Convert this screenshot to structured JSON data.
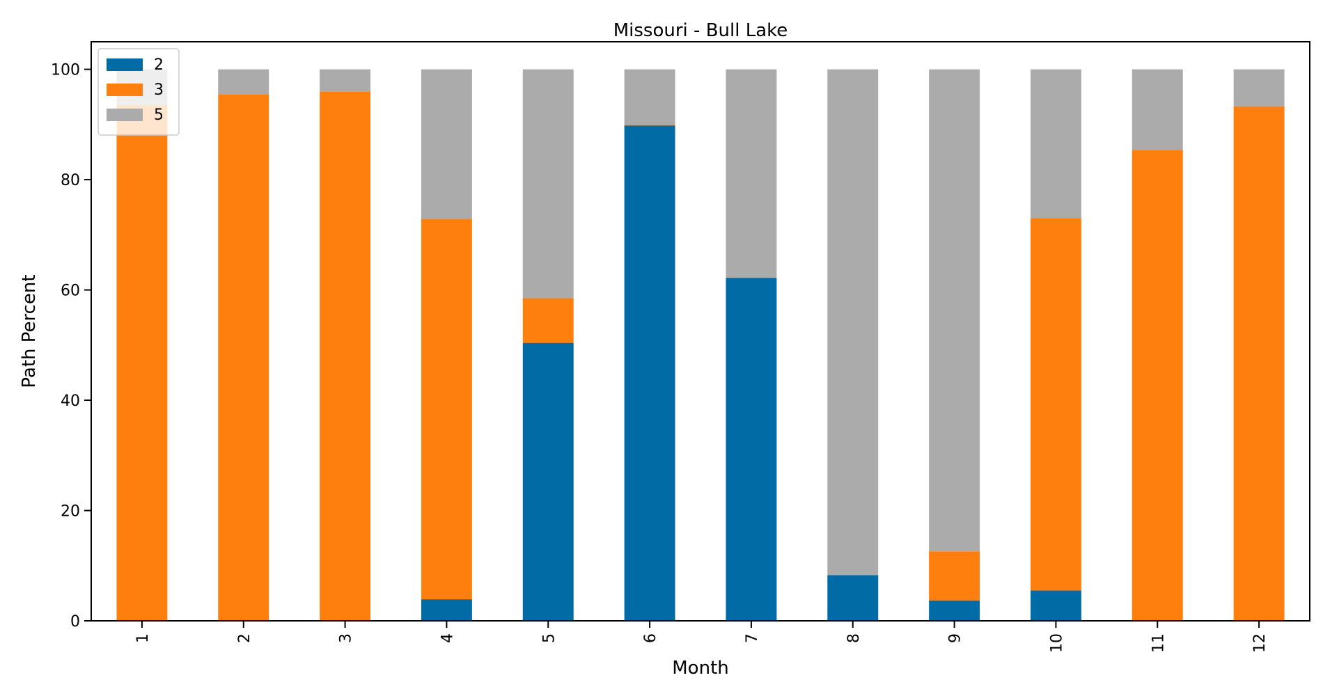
{
  "chart_data": {
    "type": "bar",
    "stacked": true,
    "title": "Missouri - Bull Lake",
    "xlabel": "Month",
    "ylabel": "Path Percent",
    "categories": [
      "1",
      "2",
      "3",
      "4",
      "5",
      "6",
      "7",
      "8",
      "9",
      "10",
      "11",
      "12"
    ],
    "ylim": [
      0,
      105
    ],
    "yticks": [
      0,
      20,
      40,
      60,
      80,
      100
    ],
    "grid": false,
    "legend_position": "upper-left",
    "series": [
      {
        "name": "2",
        "color": "#016ba6",
        "values": [
          0,
          0,
          0,
          3.9,
          50.4,
          89.8,
          62.2,
          8.3,
          3.7,
          5.5,
          0,
          0
        ]
      },
      {
        "name": "3",
        "color": "#ff7f0e",
        "values": [
          93.5,
          95.5,
          96.0,
          69.0,
          8.1,
          0.2,
          0,
          0,
          8.9,
          67.5,
          85.4,
          93.3
        ]
      },
      {
        "name": "5",
        "color": "#ababab",
        "values": [
          6.5,
          4.5,
          4.0,
          27.1,
          41.5,
          10.0,
          37.8,
          91.7,
          87.4,
          27.0,
          14.6,
          6.7
        ]
      }
    ]
  }
}
